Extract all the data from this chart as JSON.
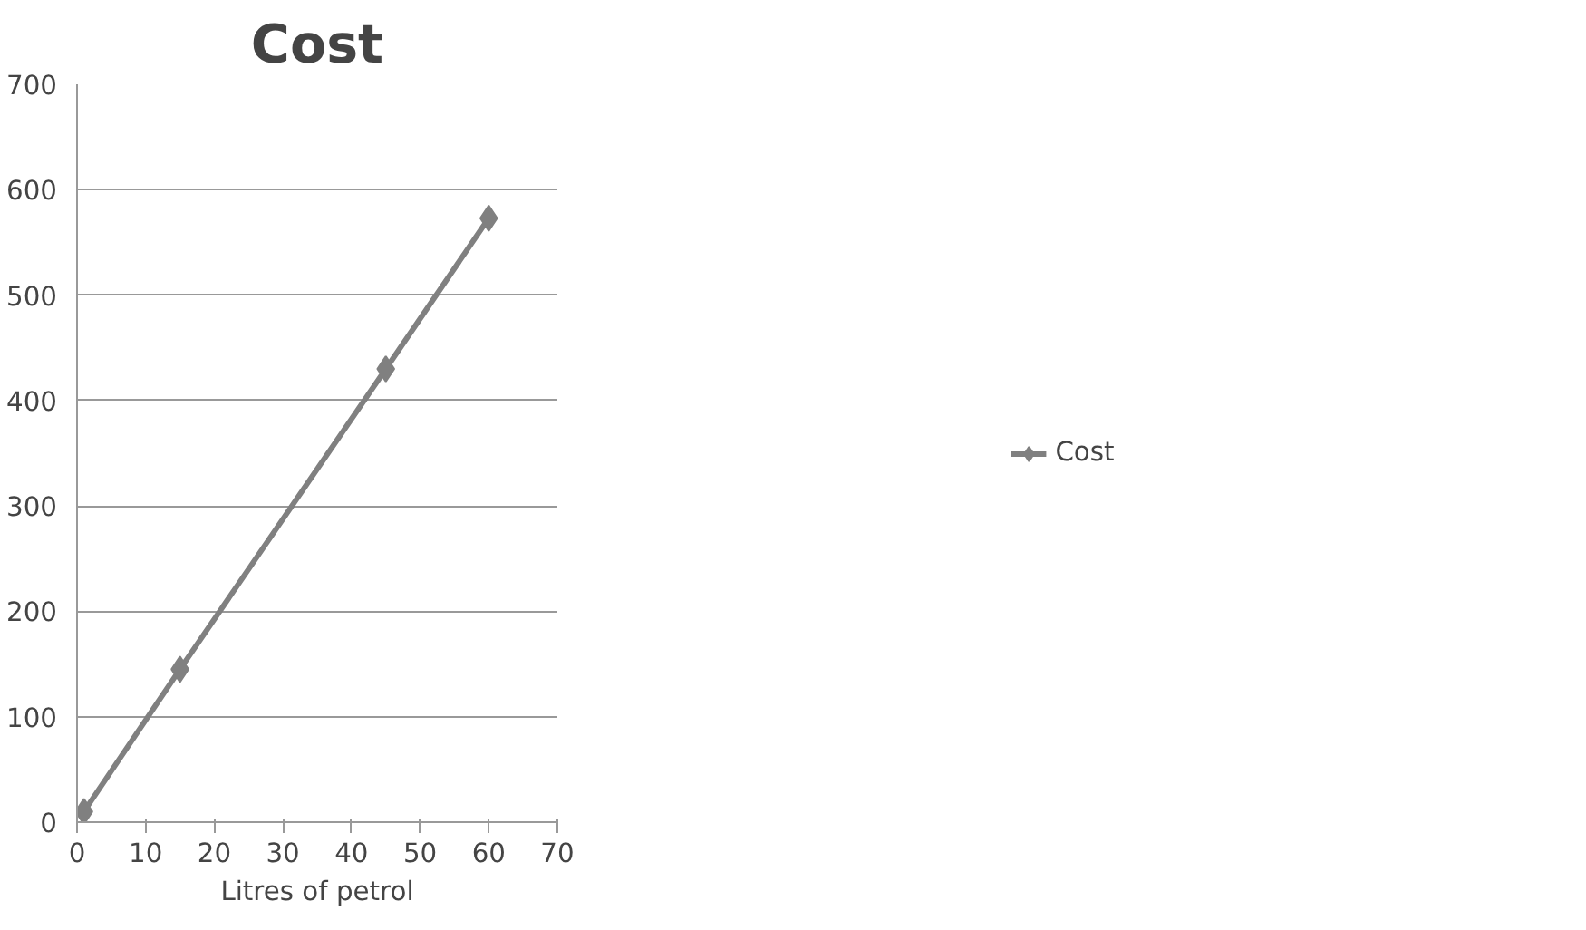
{
  "chart_data": {
    "type": "line",
    "title": "Cost",
    "xlabel": "Litres of petrol",
    "x": [
      1,
      15,
      45,
      60
    ],
    "series": [
      {
        "name": "Cost",
        "color": "#808080",
        "values": [
          10,
          145,
          430,
          573
        ]
      }
    ],
    "xlim": [
      0,
      70
    ],
    "xticks": [
      0,
      10,
      20,
      30,
      40,
      50,
      60,
      70
    ],
    "ylim": [
      0,
      700
    ],
    "yticks": [
      0,
      100,
      200,
      300,
      400,
      500,
      600,
      700
    ],
    "grid": "y",
    "legend": "right",
    "marker": "diamond",
    "line_style": "solid"
  }
}
